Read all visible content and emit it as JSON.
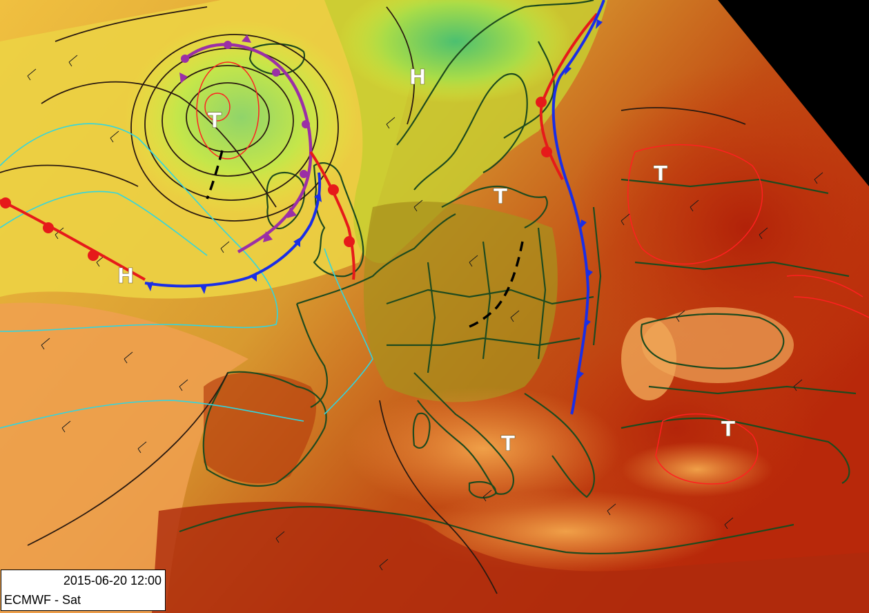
{
  "map": {
    "valid_time": "2015-06-20 12:00",
    "model_label": "ECMWF - Sat",
    "colors": {
      "cold_front": "#1a2ee6",
      "warm_front": "#e61a1a",
      "occluded_front": "#9b2fa6",
      "trough": "#000000",
      "isobar": "#2a1a10",
      "warm_isoline": "#ff2020",
      "cold_isoline": "#30d6e0",
      "coastline": "#1e4a1e",
      "background_hot": "#b8280a",
      "background_mild": "#e8b850",
      "background_cool": "#d8ee3c",
      "background_cold": "#5cc07a"
    },
    "pressure_centers": [
      {
        "label": "T",
        "type": "low"
      },
      {
        "label": "H",
        "type": "high"
      },
      {
        "label": "T",
        "type": "low"
      },
      {
        "label": "T",
        "type": "low"
      },
      {
        "label": "H",
        "type": "high"
      },
      {
        "label": "T",
        "type": "low"
      },
      {
        "label": "T",
        "type": "low"
      }
    ]
  }
}
